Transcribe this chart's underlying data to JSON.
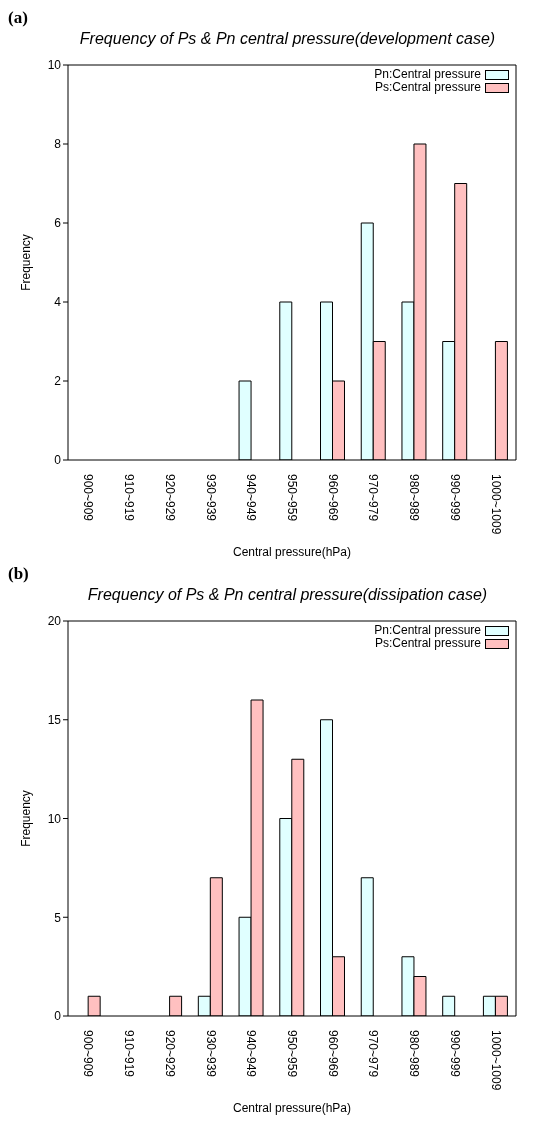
{
  "chart_data": [
    {
      "type": "bar",
      "title": "Frequency of Ps & Pn central pressure(development case)",
      "xlabel": "Central pressure(hPa)",
      "ylabel": "Frequency",
      "annotations": [
        "(a)"
      ],
      "categories": [
        "900~909",
        "910~919",
        "920~929",
        "930~939",
        "940~949",
        "950~959",
        "960~969",
        "970~979",
        "980~989",
        "990~999",
        "1000~1009"
      ],
      "series": [
        {
          "name": "Pn:Central pressure",
          "color": "#e0ffff",
          "values": [
            0,
            0,
            0,
            0,
            2,
            4,
            4,
            6,
            4,
            3,
            0
          ]
        },
        {
          "name": "Ps:Central pressure",
          "color": "#ffc0c0",
          "values": [
            0,
            0,
            0,
            0,
            0,
            0,
            2,
            3,
            8,
            7,
            3
          ]
        }
      ],
      "ylim": [
        0,
        10
      ],
      "yticks": [
        0,
        2,
        4,
        6,
        8,
        10
      ],
      "legend": "top right"
    },
    {
      "type": "bar",
      "title": "Frequency of Ps & Pn central pressure(dissipation case)",
      "xlabel": "Central pressure(hPa)",
      "ylabel": "Frequency",
      "annotations": [
        "(b)"
      ],
      "categories": [
        "900~909",
        "910~919",
        "920~929",
        "930~939",
        "940~949",
        "950~959",
        "960~969",
        "970~979",
        "980~989",
        "990~999",
        "1000~1009"
      ],
      "series": [
        {
          "name": "Pn:Central pressure",
          "color": "#e0ffff",
          "values": [
            0,
            0,
            0,
            1,
            5,
            10,
            15,
            7,
            3,
            1,
            1
          ]
        },
        {
          "name": "Ps:Central pressure",
          "color": "#ffc0c0",
          "values": [
            1,
            0,
            1,
            7,
            16,
            13,
            3,
            0,
            2,
            0,
            1
          ]
        }
      ],
      "ylim": [
        0,
        20
      ],
      "yticks": [
        0,
        5,
        10,
        15,
        20
      ],
      "legend": "top right"
    }
  ]
}
